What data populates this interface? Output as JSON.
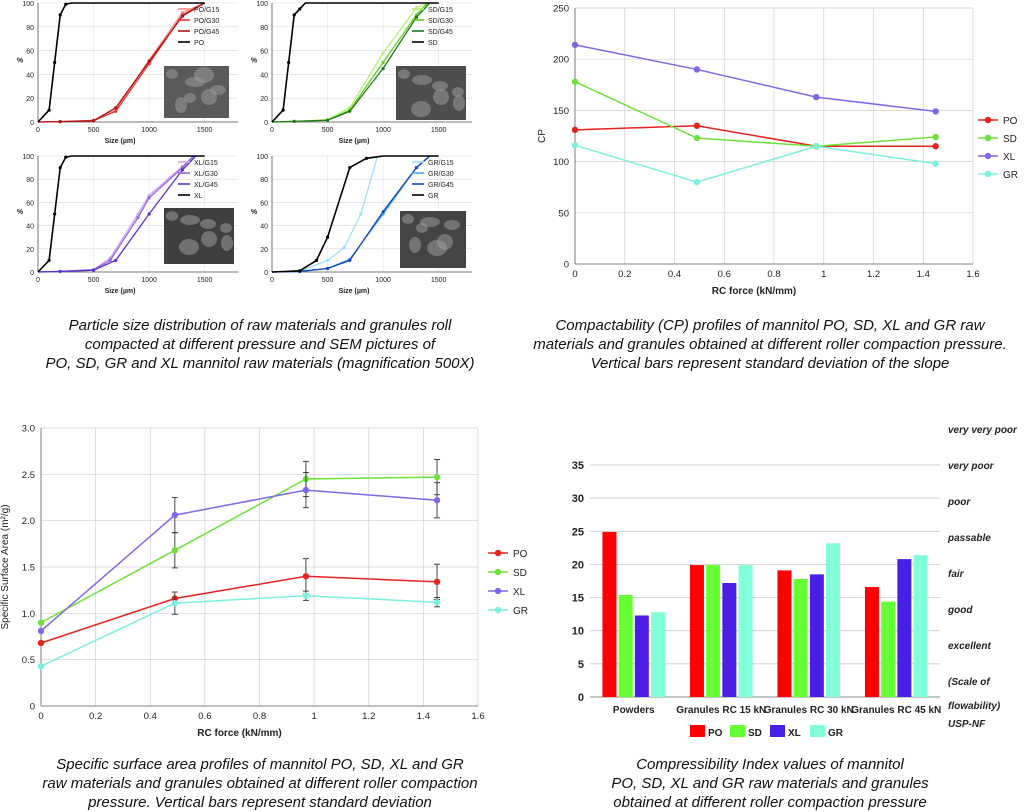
{
  "captions": {
    "psd": [
      "Particle size distribution of raw materials and granules roll",
      "compacted at different pressure and SEM pictures of",
      "PO, SD, GR and XL mannitol raw materials (magnification 500X)"
    ],
    "cp": [
      "Compactability (CP) profiles of mannitol PO, SD, XL and GR raw",
      "materials and granules obtained at different roller compaction pressure.",
      "Vertical bars represent standard deviation of the slope"
    ],
    "ssa": [
      "Specific surface area profiles of mannitol PO, SD, XL and GR",
      "raw materials and granules obtained at different roller compaction",
      "pressure. Vertical bars represent standard deviation"
    ],
    "ci": [
      "Compressibility Index values of mannitol",
      "PO, SD, XL and GR raw materials and granules",
      "obtained at different roller compaction pressure"
    ]
  },
  "colors": {
    "PO": "#e8231f",
    "SD": "#6ee23a",
    "XL": "#7b6ae6",
    "GR": "#7cf0dc",
    "CI_PO": "#ff0000",
    "CI_SD": "#66ff33",
    "CI_XL": "#4b1ee6",
    "CI_GR": "#80ffd9"
  },
  "chart_data": [
    {
      "id": "psd-po",
      "type": "line",
      "xlabel": "Size (µm)",
      "ylabel": "%",
      "xlim": [
        0,
        1800
      ],
      "ylim": [
        0,
        100
      ],
      "xticks": [
        "0",
        "500",
        "1000",
        "1500"
      ],
      "yticks": [
        "0",
        "20",
        "40",
        "60",
        "80",
        "100"
      ],
      "series": [
        {
          "name": "PO/G15",
          "color": "#ff8e8e",
          "x": [
            0,
            200,
            500,
            700,
            1000,
            1300,
            1500
          ],
          "y": [
            0,
            0.3,
            1.5,
            10,
            52,
            92,
            100
          ]
        },
        {
          "name": "PO/G30",
          "color": "#e33b3b",
          "x": [
            0,
            200,
            500,
            700,
            1000,
            1300,
            1500
          ],
          "y": [
            0,
            0.3,
            1.2,
            9,
            49,
            90,
            100
          ]
        },
        {
          "name": "PO/G45",
          "color": "#b11212",
          "x": [
            0,
            200,
            500,
            700,
            1000,
            1300,
            1500
          ],
          "y": [
            0,
            0.3,
            1,
            12,
            51,
            89,
            100
          ]
        },
        {
          "name": "PO",
          "color": "#000000",
          "x": [
            0,
            100,
            150,
            200,
            250,
            300,
            500,
            700,
            1000,
            1500
          ],
          "y": [
            0,
            10,
            50,
            90,
            99,
            100,
            100,
            100,
            100,
            100
          ]
        }
      ]
    },
    {
      "id": "psd-sd",
      "type": "line",
      "xlabel": "Size (µm)",
      "ylabel": "%",
      "xlim": [
        0,
        1800
      ],
      "ylim": [
        0,
        100
      ],
      "xticks": [
        "0",
        "500",
        "1000",
        "1500"
      ],
      "yticks": [
        "0",
        "20",
        "40",
        "60",
        "80",
        "100"
      ],
      "series": [
        {
          "name": "SD/G15",
          "color": "#b6f07a",
          "x": [
            0,
            200,
            500,
            700,
            1000,
            1300,
            1400
          ],
          "y": [
            0,
            0.5,
            2,
            12,
            58,
            96,
            100
          ]
        },
        {
          "name": "SD/G30",
          "color": "#66cc22",
          "x": [
            0,
            200,
            500,
            700,
            1000,
            1300,
            1400
          ],
          "y": [
            0,
            0.5,
            1.5,
            10,
            50,
            90,
            100
          ]
        },
        {
          "name": "SD/G45",
          "color": "#1f7a1f",
          "x": [
            0,
            200,
            500,
            700,
            1000,
            1300,
            1420
          ],
          "y": [
            0,
            0.5,
            1.5,
            9,
            45,
            88,
            100
          ]
        },
        {
          "name": "SD",
          "color": "#000000",
          "x": [
            0,
            100,
            150,
            200,
            250,
            300,
            500,
            700,
            1000,
            1500
          ],
          "y": [
            0,
            10,
            50,
            90,
            95,
            100,
            100,
            100,
            100,
            100
          ]
        }
      ]
    },
    {
      "id": "psd-xl",
      "type": "line",
      "xlabel": "Size (µm)",
      "ylabel": "%",
      "xlim": [
        0,
        1800
      ],
      "ylim": [
        0,
        100
      ],
      "xticks": [
        "0",
        "500",
        "1000",
        "1500"
      ],
      "yticks": [
        "0",
        "20",
        "40",
        "60",
        "80",
        "100"
      ],
      "series": [
        {
          "name": "XL/G15",
          "color": "#c9a6ef",
          "x": [
            0,
            200,
            500,
            650,
            900,
            1000,
            1300,
            1400
          ],
          "y": [
            0,
            0.5,
            2,
            12,
            50,
            66,
            91,
            100
          ]
        },
        {
          "name": "XL/G30",
          "color": "#9a66dd",
          "x": [
            0,
            200,
            500,
            650,
            900,
            1000,
            1300,
            1400
          ],
          "y": [
            0,
            0.5,
            2,
            10,
            47,
            64,
            90,
            100
          ]
        },
        {
          "name": "XL/G45",
          "color": "#5533cc",
          "x": [
            0,
            200,
            500,
            700,
            1000,
            1300,
            1420
          ],
          "y": [
            0,
            0.5,
            1.5,
            10,
            50,
            88,
            100
          ]
        },
        {
          "name": "XL",
          "color": "#000000",
          "x": [
            0,
            100,
            150,
            200,
            250,
            300,
            500,
            700,
            1000,
            1500
          ],
          "y": [
            0,
            10,
            50,
            90,
            99,
            100,
            100,
            100,
            100,
            100
          ]
        }
      ]
    },
    {
      "id": "psd-gr",
      "type": "line",
      "xlabel": "Size (µm)",
      "ylabel": "%",
      "xlim": [
        0,
        1800
      ],
      "ylim": [
        0,
        100
      ],
      "xticks": [
        "0",
        "500",
        "1000",
        "1500"
      ],
      "yticks": [
        "0",
        "20",
        "40",
        "60",
        "80",
        "100"
      ],
      "series": [
        {
          "name": "GR/G15",
          "color": "#9fdcff",
          "x": [
            0,
            250,
            500,
            650,
            800,
            950
          ],
          "y": [
            0,
            0.5,
            10,
            21,
            50,
            100
          ]
        },
        {
          "name": "GR/G30",
          "color": "#44aaee",
          "x": [
            0,
            250,
            500,
            700,
            1000,
            1300,
            1420
          ],
          "y": [
            0,
            0.5,
            3,
            11,
            50,
            90,
            100
          ]
        },
        {
          "name": "GR/G45",
          "color": "#1a44b8",
          "x": [
            0,
            250,
            500,
            700,
            1000,
            1300,
            1420
          ],
          "y": [
            0,
            0.5,
            3,
            10,
            52,
            90,
            100
          ]
        },
        {
          "name": "GR",
          "color": "#000000",
          "x": [
            0,
            250,
            400,
            500,
            700,
            850,
            1000,
            1500
          ],
          "y": [
            0,
            1,
            10,
            30,
            90,
            98,
            100,
            100
          ]
        }
      ]
    },
    {
      "id": "cp",
      "type": "line",
      "xlabel": "RC force (kN/mm)",
      "ylabel": "CP",
      "xlim": [
        0,
        1.6
      ],
      "ylim": [
        0,
        250
      ],
      "xticks": [
        "0",
        "0.2",
        "0.4",
        "0.6",
        "0.8",
        "1",
        "1.2",
        "1.4",
        "1.6"
      ],
      "yticks": [
        "0",
        "50",
        "100",
        "150",
        "200",
        "250"
      ],
      "legend": "right",
      "series": [
        {
          "name": "PO",
          "x": [
            0,
            0.49,
            0.97,
            1.45
          ],
          "y": [
            131,
            135,
            115,
            115
          ]
        },
        {
          "name": "SD",
          "x": [
            0,
            0.49,
            0.97,
            1.45
          ],
          "y": [
            178,
            123,
            115,
            124
          ]
        },
        {
          "name": "XL",
          "x": [
            0,
            0.49,
            0.97,
            1.45
          ],
          "y": [
            214,
            190,
            163,
            149
          ]
        },
        {
          "name": "GR",
          "x": [
            0,
            0.49,
            0.97,
            1.45
          ],
          "y": [
            116,
            80,
            115,
            98
          ]
        }
      ]
    },
    {
      "id": "ssa",
      "type": "line",
      "xlabel": "RC force (kN/mm)",
      "ylabel": "Specific Surface Area (m²/g)",
      "xlim": [
        0,
        1.6
      ],
      "ylim": [
        0,
        3.0
      ],
      "xticks": [
        "0",
        "0.2",
        "0.4",
        "0.6",
        "0.8",
        "1",
        "1.2",
        "1.4",
        "1.6"
      ],
      "yticks": [
        "0",
        "0.5",
        "1.0",
        "1.5",
        "2.0",
        "2.5",
        "3.0"
      ],
      "legend": "right",
      "series": [
        {
          "name": "PO",
          "x": [
            0,
            0.49,
            0.97,
            1.45
          ],
          "y": [
            0.68,
            1.16,
            1.4,
            1.34
          ],
          "err": [
            0,
            0,
            0.19,
            0.19
          ]
        },
        {
          "name": "SD",
          "x": [
            0,
            0.49,
            0.97,
            1.45
          ],
          "y": [
            0.9,
            1.68,
            2.45,
            2.47
          ],
          "err": [
            0,
            0.19,
            0.19,
            0.19
          ]
        },
        {
          "name": "XL",
          "x": [
            0,
            0.49,
            0.97,
            1.45
          ],
          "y": [
            0.81,
            2.06,
            2.33,
            2.22
          ],
          "err": [
            0,
            0.19,
            0.19,
            0.19
          ]
        },
        {
          "name": "GR",
          "x": [
            0,
            0.49,
            0.97,
            1.45
          ],
          "y": [
            0.43,
            1.11,
            1.19,
            1.12
          ],
          "err": [
            0,
            0.12,
            0.05,
            0.05
          ]
        }
      ]
    },
    {
      "id": "ci",
      "type": "bar",
      "categories": [
        "Powders",
        "Granules RC 15 kN",
        "Granules RC 30 kN",
        "Granules RC 45 kN"
      ],
      "ylim": [
        0,
        35
      ],
      "yticks": [
        "0",
        "5",
        "10",
        "15",
        "20",
        "25",
        "30",
        "35"
      ],
      "legend": "bottom",
      "series": [
        {
          "name": "PO",
          "values": [
            24.9,
            19.9,
            19.1,
            16.6
          ]
        },
        {
          "name": "SD",
          "values": [
            15.4,
            19.9,
            17.8,
            14.4
          ]
        },
        {
          "name": "XL",
          "values": [
            12.3,
            17.2,
            18.5,
            20.8
          ]
        },
        {
          "name": "GR",
          "values": [
            12.8,
            19.9,
            23.2,
            21.4
          ]
        }
      ],
      "scale_labels": [
        "very very poor",
        "very poor",
        "poor",
        "passable",
        "fair",
        "good",
        "excellent",
        "(Scale of",
        "flowability)",
        "USP-NF"
      ]
    }
  ]
}
